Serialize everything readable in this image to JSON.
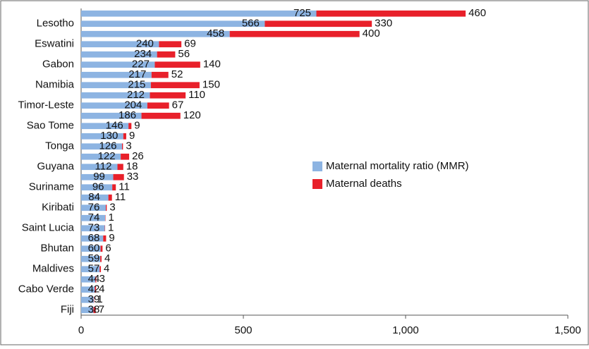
{
  "chart_data": {
    "type": "stacked-barh",
    "categories": [
      null,
      "Lesotho",
      null,
      "Eswatini",
      null,
      "Gabon",
      null,
      "Namibia",
      null,
      "Timor-Leste",
      null,
      "Sao Tome",
      null,
      "Tonga",
      null,
      "Guyana",
      null,
      "Suriname",
      null,
      "Kiribati",
      null,
      "Saint Lucia",
      null,
      "Bhutan",
      null,
      "Maldives",
      null,
      "Cabo Verde",
      null,
      "Fiji"
    ],
    "series": [
      {
        "name": "Maternal mortality ratio (MMR)",
        "color": "#8db4e2",
        "values": [
          725,
          566,
          458,
          240,
          234,
          227,
          217,
          215,
          212,
          204,
          186,
          146,
          130,
          126,
          122,
          112,
          99,
          96,
          84,
          76,
          74,
          73,
          68,
          60,
          59,
          57,
          44,
          42,
          39,
          38
        ]
      },
      {
        "name": "Maternal deaths",
        "color": "#e8202a",
        "values": [
          460,
          330,
          400,
          69,
          56,
          140,
          52,
          150,
          110,
          67,
          120,
          9,
          9,
          3,
          26,
          18,
          33,
          11,
          11,
          3,
          1,
          1,
          9,
          6,
          4,
          4,
          3,
          4,
          1,
          7
        ]
      }
    ],
    "xlim": [
      0,
      1500
    ],
    "xticks": [
      0,
      500,
      {
        "value": 1000,
        "label": "1,000"
      },
      {
        "value": 1500,
        "label": "1,500"
      }
    ]
  }
}
